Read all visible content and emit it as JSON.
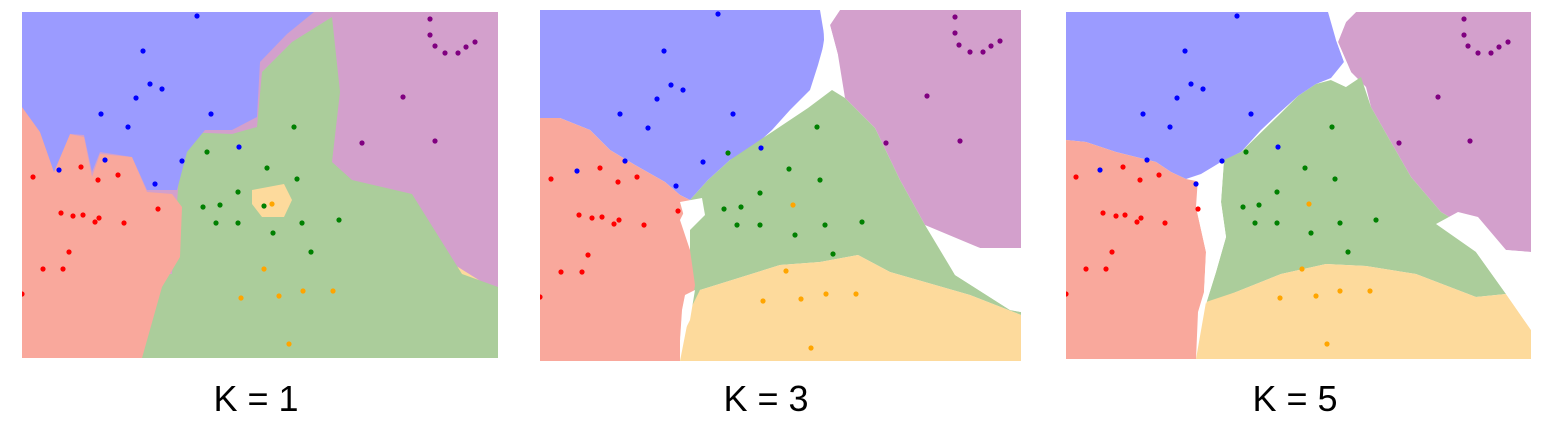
{
  "colors": {
    "blue_region": "#9b9bff",
    "red_region": "#f9a89c",
    "green_region": "#abcd9b",
    "orange_region": "#fdda9c",
    "purple_region": "#d3a0cc",
    "blue_point": "#0000ff",
    "red_point": "#ff0000",
    "green_point": "#008000",
    "orange_point": "#ffa500",
    "purple_point": "#800080"
  },
  "panels": [
    {
      "label": "K = 1"
    },
    {
      "label": "K = 3"
    },
    {
      "label": "K = 5"
    }
  ]
}
